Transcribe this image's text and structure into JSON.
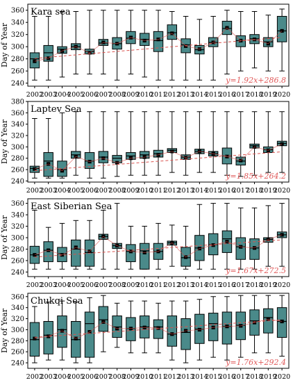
{
  "figure": {
    "box_fill": "#4a8a8a",
    "box_stroke": "#000000",
    "trend_color": "#d9534f",
    "eq_color": "#e05a5a",
    "years": [
      "2002",
      "2003",
      "2004",
      "2005",
      "2006",
      "2007",
      "2008",
      "2009",
      "2010",
      "2011",
      "2012",
      "2013",
      "2014",
      "2015",
      "2016",
      "2017",
      "2018",
      "2019",
      "2020"
    ]
  },
  "chart_data": [
    {
      "type": "box",
      "title": "Kara sea",
      "ylabel": "Day of Year",
      "ylim": [
        235,
        370
      ],
      "yticks": [
        240,
        260,
        280,
        300,
        320,
        340,
        360
      ],
      "trend_label": "y=1.92x+286.8",
      "trend": {
        "slope": 1.92,
        "intercept": 286.8
      },
      "boxes": [
        {
          "q1": 265,
          "median": 280,
          "q3": 290,
          "whisker_low": 245,
          "whisker_high": 350,
          "mean": 276
        },
        {
          "q1": 276,
          "median": 290,
          "q3": 302,
          "whisker_low": 245,
          "whisker_high": 350,
          "mean": 281
        },
        {
          "q1": 289,
          "median": 296,
          "q3": 300,
          "whisker_low": 250,
          "whisker_high": 358,
          "mean": 293
        },
        {
          "q1": 295,
          "median": 300,
          "q3": 305,
          "whisker_low": 255,
          "whisker_high": 358,
          "mean": 300
        },
        {
          "q1": 288,
          "median": 292,
          "q3": 296,
          "whisker_low": 255,
          "whisker_high": 360,
          "mean": 290
        },
        {
          "q1": 302,
          "median": 306,
          "q3": 312,
          "whisker_low": 255,
          "whisker_high": 360,
          "mean": 307
        },
        {
          "q1": 296,
          "median": 305,
          "q3": 315,
          "whisker_low": 245,
          "whisker_high": 360,
          "mean": 305
        },
        {
          "q1": 305,
          "median": 314,
          "q3": 325,
          "whisker_low": 255,
          "whisker_high": 360,
          "mean": 315
        },
        {
          "q1": 302,
          "median": 312,
          "q3": 322,
          "whisker_low": 250,
          "whisker_high": 360,
          "mean": 310
        },
        {
          "q1": 292,
          "median": 310,
          "q3": 325,
          "whisker_low": 245,
          "whisker_high": 360,
          "mean": 312
        },
        {
          "q1": 312,
          "median": 323,
          "q3": 336,
          "whisker_low": 245,
          "whisker_high": 358,
          "mean": 322
        },
        {
          "q1": 290,
          "median": 303,
          "q3": 313,
          "whisker_low": 245,
          "whisker_high": 350,
          "mean": 301
        },
        {
          "q1": 288,
          "median": 295,
          "q3": 302,
          "whisker_low": 245,
          "whisker_high": 345,
          "mean": 296
        },
        {
          "q1": 300,
          "median": 307,
          "q3": 315,
          "whisker_low": 245,
          "whisker_high": 350,
          "mean": 307
        },
        {
          "q1": 320,
          "median": 330,
          "q3": 342,
          "whisker_low": 255,
          "whisker_high": 360,
          "mean": 331
        },
        {
          "q1": 300,
          "median": 310,
          "q3": 318,
          "whisker_low": 260,
          "whisker_high": 358,
          "mean": 310
        },
        {
          "q1": 305,
          "median": 313,
          "q3": 320,
          "whisker_low": 265,
          "whisker_high": 358,
          "mean": 312
        },
        {
          "q1": 300,
          "median": 308,
          "q3": 315,
          "whisker_low": 260,
          "whisker_high": 352,
          "mean": 305
        },
        {
          "q1": 308,
          "median": 326,
          "q3": 350,
          "whisker_low": 260,
          "whisker_high": 362,
          "mean": 326
        }
      ]
    },
    {
      "type": "box",
      "title": "Laptev Sea",
      "ylabel": "Day of Year",
      "ylim": [
        238,
        380
      ],
      "yticks": [
        240,
        260,
        280,
        300,
        320,
        340,
        360,
        380
      ],
      "trend_label": "y=1.85x+264.2",
      "trend": {
        "slope": 1.85,
        "intercept": 264.2
      },
      "boxes": [
        {
          "q1": 255,
          "median": 262,
          "q3": 266,
          "whisker_low": 245,
          "whisker_high": 350,
          "mean": 261
        },
        {
          "q1": 248,
          "median": 275,
          "q3": 290,
          "whisker_low": 245,
          "whisker_high": 350,
          "mean": 270
        },
        {
          "q1": 248,
          "median": 260,
          "q3": 275,
          "whisker_low": 245,
          "whisker_high": 360,
          "mean": 258
        },
        {
          "q1": 280,
          "median": 286,
          "q3": 292,
          "whisker_low": 250,
          "whisker_high": 362,
          "mean": 283
        },
        {
          "q1": 262,
          "median": 275,
          "q3": 290,
          "whisker_low": 245,
          "whisker_high": 362,
          "mean": 274
        },
        {
          "q1": 272,
          "median": 282,
          "q3": 292,
          "whisker_low": 245,
          "whisker_high": 362,
          "mean": 280
        },
        {
          "q1": 272,
          "median": 280,
          "q3": 285,
          "whisker_low": 248,
          "whisker_high": 362,
          "mean": 272
        },
        {
          "q1": 278,
          "median": 284,
          "q3": 290,
          "whisker_low": 250,
          "whisker_high": 362,
          "mean": 280
        },
        {
          "q1": 280,
          "median": 286,
          "q3": 292,
          "whisker_low": 250,
          "whisker_high": 362,
          "mean": 282
        },
        {
          "q1": 282,
          "median": 288,
          "q3": 294,
          "whisker_low": 250,
          "whisker_high": 362,
          "mean": 286
        },
        {
          "q1": 290,
          "median": 294,
          "q3": 297,
          "whisker_low": 255,
          "whisker_high": 362,
          "mean": 292
        },
        {
          "q1": 278,
          "median": 282,
          "q3": 286,
          "whisker_low": 250,
          "whisker_high": 362,
          "mean": 281
        },
        {
          "q1": 288,
          "median": 292,
          "q3": 296,
          "whisker_low": 255,
          "whisker_high": 362,
          "mean": 292
        },
        {
          "q1": 284,
          "median": 288,
          "q3": 292,
          "whisker_low": 255,
          "whisker_high": 362,
          "mean": 288
        },
        {
          "q1": 270,
          "median": 284,
          "q3": 298,
          "whisker_low": 250,
          "whisker_high": 362,
          "mean": 283
        },
        {
          "q1": 268,
          "median": 275,
          "q3": 282,
          "whisker_low": 248,
          "whisker_high": 362,
          "mean": 276
        },
        {
          "q1": 298,
          "median": 302,
          "q3": 305,
          "whisker_low": 250,
          "whisker_high": 362,
          "mean": 300
        },
        {
          "q1": 290,
          "median": 295,
          "q3": 300,
          "whisker_low": 255,
          "whisker_high": 362,
          "mean": 294
        },
        {
          "q1": 302,
          "median": 306,
          "q3": 310,
          "whisker_low": 255,
          "whisker_high": 362,
          "mean": 305
        }
      ]
    },
    {
      "type": "box",
      "title": "East Siberian Sea",
      "ylabel": "Day of Year",
      "ylim": [
        232,
        368
      ],
      "yticks": [
        240,
        260,
        280,
        300,
        320,
        340,
        360
      ],
      "trend_label": "y=1.67x+272.5",
      "trend": {
        "slope": 1.67,
        "intercept": 272.5
      },
      "boxes": [
        {
          "q1": 255,
          "median": 270,
          "q3": 285,
          "whisker_low": 245,
          "whisker_high": 348,
          "mean": 270
        },
        {
          "q1": 258,
          "median": 278,
          "q3": 293,
          "whisker_low": 245,
          "whisker_high": 318,
          "mean": 278
        },
        {
          "q1": 258,
          "median": 272,
          "q3": 283,
          "whisker_low": 245,
          "whisker_high": 325,
          "mean": 270
        },
        {
          "q1": 250,
          "median": 280,
          "q3": 296,
          "whisker_low": 245,
          "whisker_high": 330,
          "mean": 283
        },
        {
          "q1": 250,
          "median": 274,
          "q3": 296,
          "whisker_low": 245,
          "whisker_high": 330,
          "mean": 276
        },
        {
          "q1": 297,
          "median": 302,
          "q3": 306,
          "whisker_low": 245,
          "whisker_high": 348,
          "mean": 302
        },
        {
          "q1": 281,
          "median": 286,
          "q3": 290,
          "whisker_low": 245,
          "whisker_high": 360,
          "mean": 286
        },
        {
          "q1": 258,
          "median": 276,
          "q3": 288,
          "whisker_low": 245,
          "whisker_high": 320,
          "mean": 276
        },
        {
          "q1": 245,
          "median": 277,
          "q3": 290,
          "whisker_low": 245,
          "whisker_high": 320,
          "mean": 274
        },
        {
          "q1": 262,
          "median": 276,
          "q3": 290,
          "whisker_low": 245,
          "whisker_high": 325,
          "mean": 276
        },
        {
          "q1": 287,
          "median": 291,
          "q3": 294,
          "whisker_low": 250,
          "whisker_high": 322,
          "mean": 291
        },
        {
          "q1": 250,
          "median": 265,
          "q3": 283,
          "whisker_low": 245,
          "whisker_high": 320,
          "mean": 266
        },
        {
          "q1": 260,
          "median": 282,
          "q3": 304,
          "whisker_low": 245,
          "whisker_high": 358,
          "mean": 281
        },
        {
          "q1": 270,
          "median": 288,
          "q3": 307,
          "whisker_low": 245,
          "whisker_high": 360,
          "mean": 287
        },
        {
          "q1": 274,
          "median": 298,
          "q3": 312,
          "whisker_low": 245,
          "whisker_high": 360,
          "mean": 293
        },
        {
          "q1": 262,
          "median": 284,
          "q3": 300,
          "whisker_low": 245,
          "whisker_high": 352,
          "mean": 284
        },
        {
          "q1": 262,
          "median": 282,
          "q3": 298,
          "whisker_low": 245,
          "whisker_high": 352,
          "mean": 282
        },
        {
          "q1": 292,
          "median": 297,
          "q3": 300,
          "whisker_low": 250,
          "whisker_high": 356,
          "mean": 297
        },
        {
          "q1": 300,
          "median": 305,
          "q3": 310,
          "whisker_low": 250,
          "whisker_high": 360,
          "mean": 305
        }
      ]
    },
    {
      "type": "box",
      "title": "Chukqi Sea",
      "ylabel": "Day of Year",
      "ylim": [
        230,
        366
      ],
      "yticks": [
        240,
        260,
        280,
        300,
        320,
        340,
        360
      ],
      "trend_label": "y=1.76x+292.4",
      "trend": {
        "slope": 1.76,
        "intercept": 292.4
      },
      "boxes": [
        {
          "q1": 252,
          "median": 282,
          "q3": 313,
          "whisker_low": 240,
          "whisker_high": 342,
          "mean": 284
        },
        {
          "q1": 256,
          "median": 290,
          "q3": 315,
          "whisker_low": 245,
          "whisker_high": 350,
          "mean": 288
        },
        {
          "q1": 268,
          "median": 300,
          "q3": 325,
          "whisker_low": 245,
          "whisker_high": 352,
          "mean": 298
        },
        {
          "q1": 250,
          "median": 282,
          "q3": 315,
          "whisker_low": 240,
          "whisker_high": 350,
          "mean": 284
        },
        {
          "q1": 250,
          "median": 311,
          "q3": 332,
          "whisker_low": 240,
          "whisker_high": 358,
          "mean": 296
        },
        {
          "q1": 297,
          "median": 318,
          "q3": 342,
          "whisker_low": 260,
          "whisker_high": 362,
          "mean": 314
        },
        {
          "q1": 286,
          "median": 305,
          "q3": 325,
          "whisker_low": 268,
          "whisker_high": 348,
          "mean": 302
        },
        {
          "q1": 280,
          "median": 302,
          "q3": 322,
          "whisker_low": 258,
          "whisker_high": 352,
          "mean": 302
        },
        {
          "q1": 285,
          "median": 305,
          "q3": 325,
          "whisker_low": 258,
          "whisker_high": 352,
          "mean": 304
        },
        {
          "q1": 284,
          "median": 305,
          "q3": 318,
          "whisker_low": 258,
          "whisker_high": 348,
          "mean": 303
        },
        {
          "q1": 270,
          "median": 292,
          "q3": 325,
          "whisker_low": 245,
          "whisker_high": 352,
          "mean": 292
        },
        {
          "q1": 264,
          "median": 295,
          "q3": 320,
          "whisker_low": 240,
          "whisker_high": 352,
          "mean": 298
        },
        {
          "q1": 275,
          "median": 301,
          "q3": 328,
          "whisker_low": 245,
          "whisker_high": 355,
          "mean": 300
        },
        {
          "q1": 280,
          "median": 311,
          "q3": 330,
          "whisker_low": 250,
          "whisker_high": 360,
          "mean": 304
        },
        {
          "q1": 274,
          "median": 306,
          "q3": 332,
          "whisker_low": 245,
          "whisker_high": 360,
          "mean": 306
        },
        {
          "q1": 282,
          "median": 308,
          "q3": 332,
          "whisker_low": 250,
          "whisker_high": 362,
          "mean": 307
        },
        {
          "q1": 290,
          "median": 316,
          "q3": 336,
          "whisker_low": 258,
          "whisker_high": 362,
          "mean": 313
        },
        {
          "q1": 294,
          "median": 322,
          "q3": 338,
          "whisker_low": 258,
          "whisker_high": 362,
          "mean": 319
        },
        {
          "q1": 286,
          "median": 315,
          "q3": 340,
          "whisker_low": 252,
          "whisker_high": 362,
          "mean": 315
        }
      ]
    }
  ]
}
